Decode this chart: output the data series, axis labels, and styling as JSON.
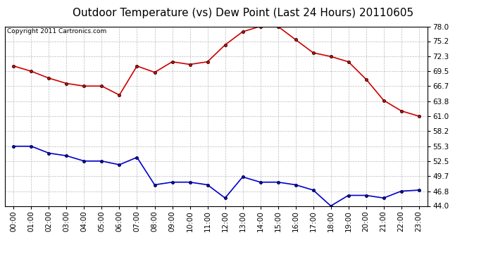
{
  "title": "Outdoor Temperature (vs) Dew Point (Last 24 Hours) 20110605",
  "copyright_text": "Copyright 2011 Cartronics.com",
  "x_labels": [
    "00:00",
    "01:00",
    "02:00",
    "03:00",
    "04:00",
    "05:00",
    "06:00",
    "07:00",
    "08:00",
    "09:00",
    "10:00",
    "11:00",
    "12:00",
    "13:00",
    "14:00",
    "15:00",
    "16:00",
    "17:00",
    "18:00",
    "19:00",
    "20:00",
    "21:00",
    "22:00",
    "23:00"
  ],
  "temp_data": [
    70.5,
    69.5,
    68.2,
    67.2,
    66.7,
    66.7,
    65.0,
    70.5,
    69.3,
    71.3,
    70.8,
    71.3,
    74.5,
    77.0,
    78.0,
    78.0,
    75.5,
    73.0,
    72.3,
    71.3,
    68.0,
    64.0,
    62.0,
    61.0
  ],
  "dew_data": [
    55.3,
    55.3,
    54.0,
    53.5,
    52.5,
    52.5,
    51.8,
    53.2,
    48.0,
    48.5,
    48.5,
    48.0,
    45.5,
    49.5,
    48.5,
    48.5,
    48.0,
    47.0,
    44.0,
    46.0,
    46.0,
    45.5,
    46.8,
    47.0
  ],
  "temp_color": "#cc0000",
  "dew_color": "#0000cc",
  "ylim_min": 44.0,
  "ylim_max": 78.0,
  "ytick_labels": [
    "44.0",
    "46.8",
    "49.7",
    "52.5",
    "55.3",
    "58.2",
    "61.0",
    "63.8",
    "66.7",
    "69.5",
    "72.3",
    "75.2",
    "78.0"
  ],
  "ytick_values": [
    44.0,
    46.8,
    49.7,
    52.5,
    55.3,
    58.2,
    61.0,
    63.8,
    66.7,
    69.5,
    72.3,
    75.2,
    78.0
  ],
  "bg_color": "#ffffff",
  "plot_bg_color": "#ffffff",
  "grid_color": "#aaaaaa",
  "title_fontsize": 11,
  "tick_fontsize": 7.5,
  "copyright_fontsize": 6.5
}
